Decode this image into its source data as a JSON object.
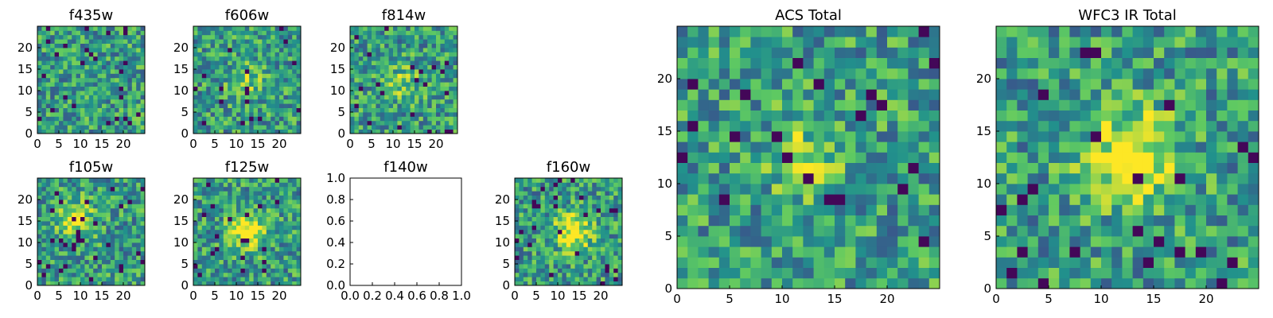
{
  "chart_data": [
    {
      "id": "f435w",
      "type": "heatmap",
      "title": "f435w",
      "xlim": [
        0,
        25
      ],
      "ylim": [
        0,
        25
      ],
      "xticks": [
        "0",
        "5",
        "10",
        "15",
        "20"
      ],
      "yticks": [
        "0",
        "5",
        "10",
        "15",
        "20"
      ],
      "values": null,
      "blob": [
        0.0,
        0.0,
        0.0
      ]
    },
    {
      "id": "f606w",
      "type": "heatmap",
      "title": "f606w",
      "xlim": [
        0,
        25
      ],
      "ylim": [
        0,
        25
      ],
      "xticks": [
        "0",
        "5",
        "10",
        "15",
        "20"
      ],
      "yticks": [
        "0",
        "5",
        "10",
        "15",
        "20"
      ],
      "values": null,
      "blob": [
        12.0,
        12.0,
        0.2
      ]
    },
    {
      "id": "f814w",
      "type": "heatmap",
      "title": "f814w",
      "xlim": [
        0,
        25
      ],
      "ylim": [
        0,
        25
      ],
      "xticks": [
        "0",
        "5",
        "10",
        "15",
        "20"
      ],
      "yticks": [
        "0",
        "5",
        "10",
        "15",
        "20"
      ],
      "values": null,
      "blob": [
        12.0,
        11.0,
        0.25
      ]
    },
    {
      "id": "f105w",
      "type": "heatmap",
      "title": "f105w",
      "xlim": [
        0,
        25
      ],
      "ylim": [
        0,
        25
      ],
      "xticks": [
        "0",
        "5",
        "10",
        "15",
        "20"
      ],
      "yticks": [
        "0",
        "5",
        "10",
        "15",
        "20"
      ],
      "values": null,
      "blob": [
        8.0,
        15.0,
        0.4
      ]
    },
    {
      "id": "f125w",
      "type": "heatmap",
      "title": "f125w",
      "xlim": [
        0,
        25
      ],
      "ylim": [
        0,
        25
      ],
      "xticks": [
        "0",
        "5",
        "10",
        "15",
        "20"
      ],
      "yticks": [
        "0",
        "5",
        "10",
        "15",
        "20"
      ],
      "values": null,
      "blob": [
        12.0,
        12.0,
        0.45
      ]
    },
    {
      "id": "f140w",
      "type": "empty",
      "title": "f140w",
      "xlim": [
        0,
        1
      ],
      "ylim": [
        0,
        1
      ],
      "xticks": [
        "0.0",
        "0.2",
        "0.4",
        "0.6",
        "0.8",
        "1.0"
      ],
      "yticks": [
        "0.0",
        "0.2",
        "0.4",
        "0.6",
        "0.8",
        "1.0"
      ]
    },
    {
      "id": "f160w",
      "type": "heatmap",
      "title": "f160w",
      "xlim": [
        0,
        25
      ],
      "ylim": [
        0,
        25
      ],
      "xticks": [
        "0",
        "5",
        "10",
        "15",
        "20"
      ],
      "yticks": [
        "0",
        "5",
        "10",
        "15",
        "20"
      ],
      "values": null,
      "blob": [
        13.0,
        12.0,
        0.5
      ]
    },
    {
      "id": "acs_total",
      "type": "heatmap",
      "title": "ACS Total",
      "xlim": [
        0,
        25
      ],
      "ylim": [
        0,
        25
      ],
      "xticks": [
        "0",
        "5",
        "10",
        "15",
        "20"
      ],
      "yticks": [
        "0",
        "5",
        "10",
        "15",
        "20"
      ],
      "values": null,
      "blob": [
        12.0,
        12.0,
        0.25
      ]
    },
    {
      "id": "wfc3_ir_total",
      "type": "heatmap",
      "title": "WFC3 IR Total",
      "xlim": [
        0,
        25
      ],
      "ylim": [
        0,
        25
      ],
      "xticks": [
        "0",
        "5",
        "10",
        "15",
        "20"
      ],
      "yticks": [
        "0",
        "5",
        "10",
        "15",
        "20"
      ],
      "values": null,
      "blob": [
        12.5,
        12.0,
        0.55
      ]
    }
  ],
  "colormap": [
    "#440154",
    "#3b528b",
    "#21918c",
    "#5ec962",
    "#fde725"
  ]
}
